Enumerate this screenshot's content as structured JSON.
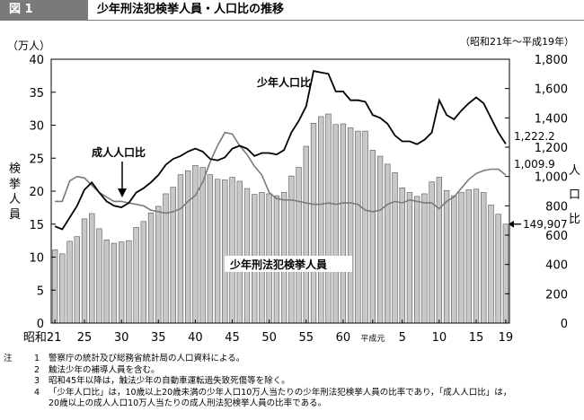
{
  "figure": {
    "badge": "図 1",
    "title": "少年刑法犯検挙人員・人口比の推移"
  },
  "chart_data": {
    "type": "bar+line",
    "left_unit": "（万人）",
    "right_unit": "（昭和21年～平成19年）",
    "ylabel_left": "検挙人員",
    "ylabel_right": "人口比",
    "ylim_left": [
      0,
      40
    ],
    "ylim_right": [
      0,
      1800
    ],
    "left_ticks": [
      0,
      5,
      10,
      15,
      20,
      25,
      30,
      35,
      40
    ],
    "right_ticks": [
      {
        "value": 0,
        "label": "0"
      },
      {
        "value": 200,
        "label": "200"
      },
      {
        "value": 400,
        "label": "400"
      },
      {
        "value": 600,
        "label": "600"
      },
      {
        "value": 800,
        "label": "800"
      },
      {
        "value": 1000,
        "label": "1,000"
      },
      {
        "value": 1200,
        "label": "1,200"
      },
      {
        "value": 1400,
        "label": "1,400"
      },
      {
        "value": 1600,
        "label": "1,600"
      },
      {
        "value": 1800,
        "label": "1,800"
      }
    ],
    "x_tick_labels": [
      {
        "index": 0,
        "label": "昭和21"
      },
      {
        "index": 4,
        "label": "25"
      },
      {
        "index": 9,
        "label": "30"
      },
      {
        "index": 14,
        "label": "35"
      },
      {
        "index": 19,
        "label": "40"
      },
      {
        "index": 24,
        "label": "45"
      },
      {
        "index": 29,
        "label": "50"
      },
      {
        "index": 34,
        "label": "55"
      },
      {
        "index": 39,
        "label": "60"
      },
      {
        "index": 43,
        "label": "平成元"
      },
      {
        "index": 47,
        "label": "5"
      },
      {
        "index": 52,
        "label": "10"
      },
      {
        "index": 57,
        "label": "15"
      },
      {
        "index": 61,
        "label": "19"
      }
    ],
    "years": [
      "昭和21",
      "昭和22",
      "昭和23",
      "昭和24",
      "昭和25",
      "昭和26",
      "昭和27",
      "昭和28",
      "昭和29",
      "昭和30",
      "昭和31",
      "昭和32",
      "昭和33",
      "昭和34",
      "昭和35",
      "昭和36",
      "昭和37",
      "昭和38",
      "昭和39",
      "昭和40",
      "昭和41",
      "昭和42",
      "昭和43",
      "昭和44",
      "昭和45",
      "昭和46",
      "昭和47",
      "昭和48",
      "昭和49",
      "昭和50",
      "昭和51",
      "昭和52",
      "昭和53",
      "昭和54",
      "昭和55",
      "昭和56",
      "昭和57",
      "昭和58",
      "昭和59",
      "昭和60",
      "昭和61",
      "昭和62",
      "昭和63",
      "平成元",
      "平成2",
      "平成3",
      "平成4",
      "平成5",
      "平成6",
      "平成7",
      "平成8",
      "平成9",
      "平成10",
      "平成11",
      "平成12",
      "平成13",
      "平成14",
      "平成15",
      "平成16",
      "平成17",
      "平成18",
      "平成19"
    ],
    "series": [
      {
        "name": "少年刑法犯検挙人員",
        "kind": "bar",
        "axis": "left",
        "unit": "万人",
        "values": [
          11.1,
          10.5,
          12.4,
          13.1,
          15.8,
          16.6,
          14.3,
          12.6,
          12.1,
          12.3,
          12.5,
          14.5,
          15.4,
          16.7,
          17.7,
          19.6,
          20.6,
          22.5,
          23.1,
          23.9,
          23.6,
          22.5,
          21.8,
          21.7,
          22.1,
          21.5,
          20.4,
          19.5,
          19.8,
          19.6,
          19.3,
          19.8,
          22.3,
          23.6,
          26.8,
          30.3,
          31.3,
          31.7,
          30.1,
          30.2,
          29.6,
          29.1,
          29.1,
          26.2,
          25.3,
          24.1,
          22.8,
          20.5,
          19.8,
          19.2,
          19.6,
          21.4,
          22.1,
          20.1,
          19.3,
          19.8,
          20.2,
          20.3,
          19.8,
          17.9,
          16.5,
          15.0
        ]
      },
      {
        "name": "少年人口比",
        "kind": "line",
        "axis": "right",
        "unit": "人口比",
        "values": [
          660,
          640,
          720,
          800,
          910,
          960,
          890,
          830,
          800,
          790,
          820,
          890,
          920,
          960,
          1010,
          1080,
          1120,
          1140,
          1170,
          1190,
          1170,
          1120,
          1110,
          1130,
          1190,
          1210,
          1190,
          1140,
          1160,
          1160,
          1150,
          1180,
          1300,
          1380,
          1480,
          1720,
          1710,
          1700,
          1580,
          1580,
          1520,
          1520,
          1510,
          1420,
          1400,
          1360,
          1280,
          1240,
          1240,
          1220,
          1250,
          1300,
          1520,
          1420,
          1390,
          1450,
          1500,
          1540,
          1500,
          1400,
          1300,
          1222.2
        ]
      },
      {
        "name": "成人人口比",
        "kind": "line",
        "axis": "right",
        "unit": "人口比",
        "values": [
          830,
          830,
          970,
          1000,
          990,
          940,
          890,
          860,
          830,
          830,
          820,
          810,
          800,
          770,
          760,
          750,
          760,
          780,
          830,
          870,
          960,
          1100,
          1210,
          1300,
          1290,
          1210,
          1150,
          1070,
          1010,
          890,
          850,
          840,
          840,
          830,
          820,
          810,
          810,
          820,
          810,
          820,
          820,
          810,
          770,
          760,
          770,
          810,
          830,
          820,
          840,
          830,
          820,
          820,
          780,
          830,
          860,
          920,
          980,
          1020,
          1040,
          1050,
          1050,
          1009.9
        ]
      }
    ],
    "annotations": {
      "juvenile_rate_label": "少年人口比",
      "adult_rate_label": "成人人口比",
      "arrests_label": "少年刑法犯検挙人員",
      "last_juvenile_rate": "1,222.2",
      "last_adult_rate": "1,009.9",
      "last_arrests": "149,907"
    }
  },
  "notes": {
    "head": "注",
    "items": [
      {
        "num": "1",
        "text": "警察庁の統計及び総務省統計局の人口資料による。"
      },
      {
        "num": "2",
        "text": "触法少年の補導人員を含む。"
      },
      {
        "num": "3",
        "text": "昭和45年以降は，触法少年の自動車運転過失致死傷等を除く。"
      },
      {
        "num": "4",
        "text": "「少年人口比」は，10歳以上20歳未満の少年人口10万人当たりの少年刑法犯検挙人員の比率であり，「成人人口比」は，"
      }
    ],
    "continuation": "20歳以上の成人人口10万人当たりの成人刑法犯検挙人員の比率である。"
  }
}
